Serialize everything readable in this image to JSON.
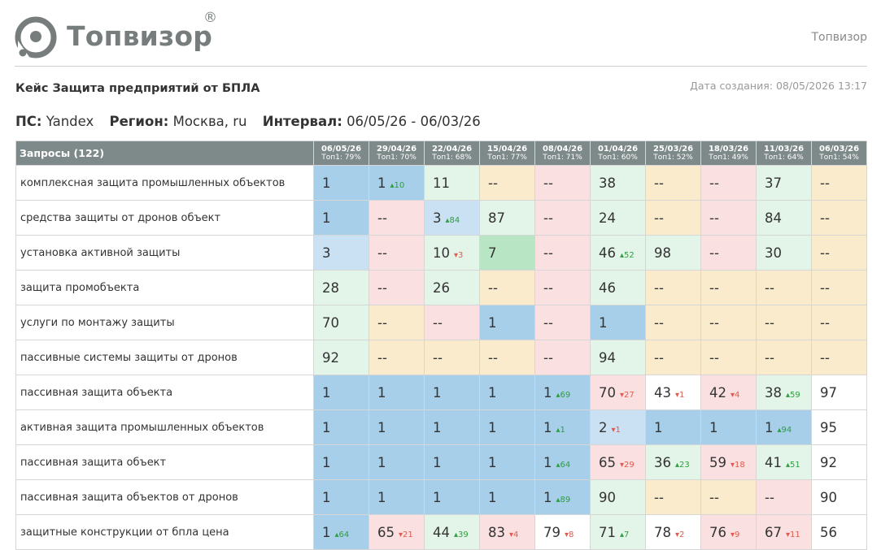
{
  "header": {
    "logo_text": "Топвизор",
    "logo_reg": "®",
    "right_label": "Топвизор"
  },
  "report": {
    "title": "Кейс Защита предприятий от БПЛА",
    "created_label": "Дата создания:",
    "created_value": "08/05/2026 13:17"
  },
  "params": {
    "ps_label": "ПС:",
    "ps_value": "Yandex",
    "region_label": "Регион:",
    "region_value": "Москва, ru",
    "interval_label": "Интервал:",
    "interval_value": "06/05/26 - 06/03/26"
  },
  "colors": {
    "header_bg": "#7e8a89",
    "blue": "#a7cfea",
    "light_blue": "#c9e1f2",
    "light_green": "#e3f4e8",
    "green": "#b8e6c4",
    "pink": "#fae0e0",
    "yellow": "#f9ebcb",
    "change_up": "#2e9e3e",
    "change_down": "#e05a4e"
  },
  "table": {
    "query_header": "Запросы (122)",
    "dates": [
      {
        "date": "06/05/26",
        "top": "Топ1: 79%"
      },
      {
        "date": "29/04/26",
        "top": "Топ1: 70%"
      },
      {
        "date": "22/04/26",
        "top": "Топ1: 68%"
      },
      {
        "date": "15/04/26",
        "top": "Топ1: 77%"
      },
      {
        "date": "08/04/26",
        "top": "Топ1: 71%"
      },
      {
        "date": "01/04/26",
        "top": "Топ1: 60%"
      },
      {
        "date": "25/03/26",
        "top": "Топ1: 52%"
      },
      {
        "date": "18/03/26",
        "top": "Топ1: 49%"
      },
      {
        "date": "11/03/26",
        "top": "Топ1: 64%"
      },
      {
        "date": "06/03/26",
        "top": "Топ1: 54%"
      }
    ],
    "rows": [
      {
        "query": "комплексная защита промышленных объектов",
        "cells": [
          {
            "v": "1",
            "bg": "blue"
          },
          {
            "v": "1",
            "ch": "10",
            "dir": "up",
            "bg": "blue"
          },
          {
            "v": "11",
            "bg": "lgreen"
          },
          {
            "v": "--",
            "bg": "yellow"
          },
          {
            "v": "--",
            "bg": "pink"
          },
          {
            "v": "38",
            "bg": "lgreen"
          },
          {
            "v": "--",
            "bg": "yellow"
          },
          {
            "v": "--",
            "bg": "pink"
          },
          {
            "v": "37",
            "bg": "lgreen"
          },
          {
            "v": "--",
            "bg": "yellow"
          }
        ]
      },
      {
        "query": "средства защиты от дронов объект",
        "cells": [
          {
            "v": "1",
            "bg": "blue"
          },
          {
            "v": "--",
            "bg": "pink"
          },
          {
            "v": "3",
            "ch": "84",
            "dir": "up",
            "bg": "lblue"
          },
          {
            "v": "87",
            "bg": "lgreen"
          },
          {
            "v": "--",
            "bg": "pink"
          },
          {
            "v": "24",
            "bg": "lgreen"
          },
          {
            "v": "--",
            "bg": "yellow"
          },
          {
            "v": "--",
            "bg": "pink"
          },
          {
            "v": "84",
            "bg": "lgreen"
          },
          {
            "v": "--",
            "bg": "yellow"
          }
        ]
      },
      {
        "query": "установка активной защиты",
        "cells": [
          {
            "v": "3",
            "bg": "lblue"
          },
          {
            "v": "--",
            "bg": "pink"
          },
          {
            "v": "10",
            "ch": "3",
            "dir": "down",
            "bg": "lgreen"
          },
          {
            "v": "7",
            "bg": "green"
          },
          {
            "v": "--",
            "bg": "pink"
          },
          {
            "v": "46",
            "ch": "52",
            "dir": "up",
            "bg": "lgreen"
          },
          {
            "v": "98",
            "bg": "lgreen"
          },
          {
            "v": "--",
            "bg": "pink"
          },
          {
            "v": "30",
            "bg": "lgreen"
          },
          {
            "v": "--",
            "bg": "yellow"
          }
        ]
      },
      {
        "query": "защита промобъекта",
        "cells": [
          {
            "v": "28",
            "bg": "lgreen"
          },
          {
            "v": "--",
            "bg": "pink"
          },
          {
            "v": "26",
            "bg": "lgreen"
          },
          {
            "v": "--",
            "bg": "yellow"
          },
          {
            "v": "--",
            "bg": "pink"
          },
          {
            "v": "46",
            "bg": "lgreen"
          },
          {
            "v": "--",
            "bg": "yellow"
          },
          {
            "v": "--",
            "bg": "yellow"
          },
          {
            "v": "--",
            "bg": "yellow"
          },
          {
            "v": "--",
            "bg": "yellow"
          }
        ]
      },
      {
        "query": "услуги по монтажу защиты",
        "cells": [
          {
            "v": "70",
            "bg": "lgreen"
          },
          {
            "v": "--",
            "bg": "yellow"
          },
          {
            "v": "--",
            "bg": "pink"
          },
          {
            "v": "1",
            "bg": "blue"
          },
          {
            "v": "--",
            "bg": "pink"
          },
          {
            "v": "1",
            "bg": "blue"
          },
          {
            "v": "--",
            "bg": "yellow"
          },
          {
            "v": "--",
            "bg": "yellow"
          },
          {
            "v": "--",
            "bg": "yellow"
          },
          {
            "v": "--",
            "bg": "yellow"
          }
        ]
      },
      {
        "query": "пассивные системы защиты от дронов",
        "cells": [
          {
            "v": "92",
            "bg": "lgreen"
          },
          {
            "v": "--",
            "bg": "yellow"
          },
          {
            "v": "--",
            "bg": "yellow"
          },
          {
            "v": "--",
            "bg": "yellow"
          },
          {
            "v": "--",
            "bg": "pink"
          },
          {
            "v": "94",
            "bg": "lgreen"
          },
          {
            "v": "--",
            "bg": "yellow"
          },
          {
            "v": "--",
            "bg": "yellow"
          },
          {
            "v": "--",
            "bg": "yellow"
          },
          {
            "v": "--",
            "bg": "yellow"
          }
        ]
      },
      {
        "query": "пассивная защита объекта",
        "cells": [
          {
            "v": "1",
            "bg": "blue"
          },
          {
            "v": "1",
            "bg": "blue"
          },
          {
            "v": "1",
            "bg": "blue"
          },
          {
            "v": "1",
            "bg": "blue"
          },
          {
            "v": "1",
            "ch": "69",
            "dir": "up",
            "bg": "blue"
          },
          {
            "v": "70",
            "ch": "27",
            "dir": "down",
            "bg": "pink"
          },
          {
            "v": "43",
            "ch": "1",
            "dir": "down",
            "bg": "white"
          },
          {
            "v": "42",
            "ch": "4",
            "dir": "down",
            "bg": "pink"
          },
          {
            "v": "38",
            "ch": "59",
            "dir": "up",
            "bg": "lgreen"
          },
          {
            "v": "97",
            "bg": "white"
          }
        ]
      },
      {
        "query": "активная защита промышленных объектов",
        "cells": [
          {
            "v": "1",
            "bg": "blue"
          },
          {
            "v": "1",
            "bg": "blue"
          },
          {
            "v": "1",
            "bg": "blue"
          },
          {
            "v": "1",
            "bg": "blue"
          },
          {
            "v": "1",
            "ch": "1",
            "dir": "up",
            "bg": "blue"
          },
          {
            "v": "2",
            "ch": "1",
            "dir": "down",
            "bg": "lblue"
          },
          {
            "v": "1",
            "bg": "blue"
          },
          {
            "v": "1",
            "bg": "blue"
          },
          {
            "v": "1",
            "ch": "94",
            "dir": "up",
            "bg": "blue"
          },
          {
            "v": "95",
            "bg": "white"
          }
        ]
      },
      {
        "query": "пассивная защита объект",
        "cells": [
          {
            "v": "1",
            "bg": "blue"
          },
          {
            "v": "1",
            "bg": "blue"
          },
          {
            "v": "1",
            "bg": "blue"
          },
          {
            "v": "1",
            "bg": "blue"
          },
          {
            "v": "1",
            "ch": "64",
            "dir": "up",
            "bg": "blue"
          },
          {
            "v": "65",
            "ch": "29",
            "dir": "down",
            "bg": "pink"
          },
          {
            "v": "36",
            "ch": "23",
            "dir": "up",
            "bg": "lgreen"
          },
          {
            "v": "59",
            "ch": "18",
            "dir": "down",
            "bg": "pink"
          },
          {
            "v": "41",
            "ch": "51",
            "dir": "up",
            "bg": "lgreen"
          },
          {
            "v": "92",
            "bg": "white"
          }
        ]
      },
      {
        "query": "пассивная защита объектов от дронов",
        "cells": [
          {
            "v": "1",
            "bg": "blue"
          },
          {
            "v": "1",
            "bg": "blue"
          },
          {
            "v": "1",
            "bg": "blue"
          },
          {
            "v": "1",
            "bg": "blue"
          },
          {
            "v": "1",
            "ch": "89",
            "dir": "up",
            "bg": "blue"
          },
          {
            "v": "90",
            "bg": "lgreen"
          },
          {
            "v": "--",
            "bg": "yellow"
          },
          {
            "v": "--",
            "bg": "yellow"
          },
          {
            "v": "--",
            "bg": "pink"
          },
          {
            "v": "90",
            "bg": "white"
          }
        ]
      },
      {
        "query": "защитные конструкции от бпла цена",
        "cells": [
          {
            "v": "1",
            "ch": "64",
            "dir": "up",
            "bg": "blue"
          },
          {
            "v": "65",
            "ch": "21",
            "dir": "down",
            "bg": "pink"
          },
          {
            "v": "44",
            "ch": "39",
            "dir": "up",
            "bg": "lgreen"
          },
          {
            "v": "83",
            "ch": "4",
            "dir": "down",
            "bg": "pink"
          },
          {
            "v": "79",
            "ch": "8",
            "dir": "down",
            "bg": "white"
          },
          {
            "v": "71",
            "ch": "7",
            "dir": "up",
            "bg": "lgreen"
          },
          {
            "v": "78",
            "ch": "2",
            "dir": "down",
            "bg": "white"
          },
          {
            "v": "76",
            "ch": "9",
            "dir": "down",
            "bg": "pink"
          },
          {
            "v": "67",
            "ch": "11",
            "dir": "down",
            "bg": "pink"
          },
          {
            "v": "56",
            "bg": "white"
          }
        ]
      }
    ]
  }
}
